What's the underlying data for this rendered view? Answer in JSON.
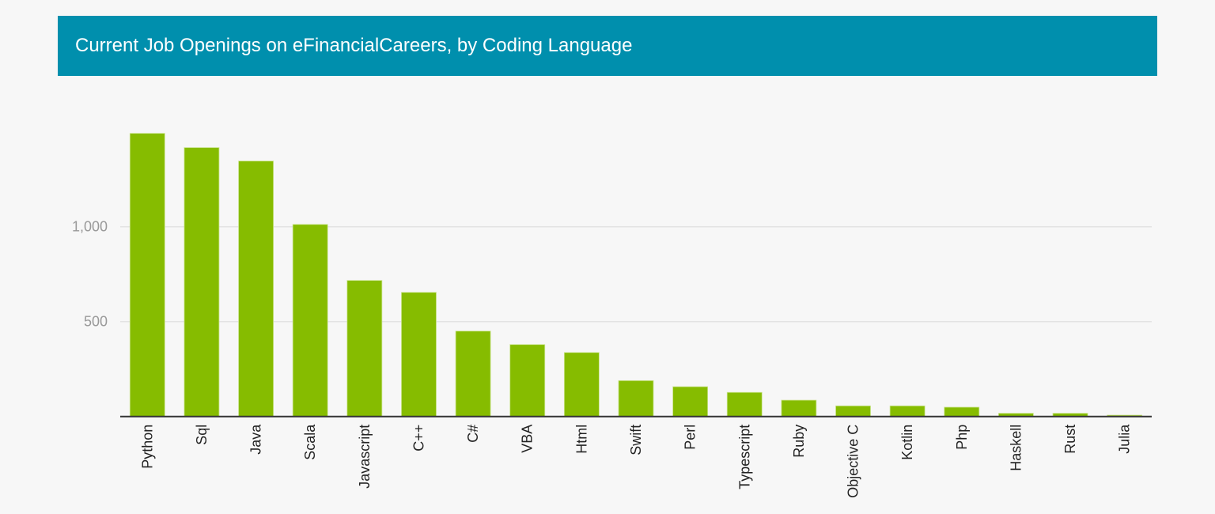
{
  "chart_data": {
    "type": "bar",
    "title": "Current Job Openings on eFinancialCareers, by Coding Language",
    "xlabel": "",
    "ylabel": "",
    "categories": [
      "Python",
      "Sql",
      "Java",
      "Scala",
      "Javascript",
      "C++",
      "C#",
      "VBA",
      "Html",
      "Swift",
      "Perl",
      "Typescript",
      "Ruby",
      "Objective C",
      "Kotlin",
      "Php",
      "Haskell",
      "Rust",
      "Julia"
    ],
    "values": [
      1492,
      1417,
      1346,
      1012,
      717,
      654,
      450,
      379,
      337,
      189,
      157,
      127,
      86,
      56,
      56,
      49,
      17,
      17,
      7
    ],
    "yticks": [
      500,
      1000
    ],
    "ytick_labels": [
      "500",
      "1,000"
    ],
    "ylim": [
      0,
      1500
    ],
    "grid": true,
    "colors": {
      "bar": "#86bc00",
      "header": "#008fad",
      "background": "#f7f7f7"
    }
  }
}
